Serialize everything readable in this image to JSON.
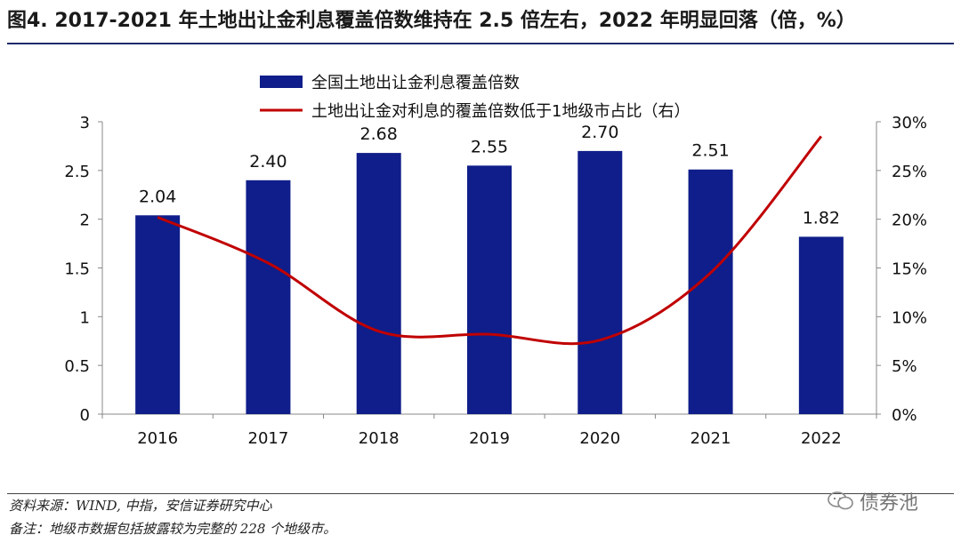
{
  "header": {
    "title": "图4. 2017-2021 年土地出让金利息覆盖倍数维持在 2.5 倍左右，2022 年明显回落（倍，%）"
  },
  "footer": {
    "source": "资料来源：WIND, 中指，安信证券研究中心",
    "note": "备注：地级市数据包括披露较为完整的 228 个地级市。",
    "watermark_text": "债券池",
    "watermark_icon": "wechat-icon"
  },
  "colors": {
    "bar": "#0f1e8a",
    "line": "#c00000",
    "rule": "#1e2a6b"
  },
  "chart_data": {
    "type": "bar",
    "title": "",
    "categories": [
      "2016",
      "2017",
      "2018",
      "2019",
      "2020",
      "2021",
      "2022"
    ],
    "series": [
      {
        "name": "全国土地出让金利息覆盖倍数",
        "type": "bar",
        "axis": "left",
        "values": [
          2.04,
          2.4,
          2.68,
          2.55,
          2.7,
          2.51,
          1.82
        ],
        "data_labels": [
          "2.04",
          "2.40",
          "2.68",
          "2.55",
          "2.70",
          "2.51",
          "1.82"
        ]
      },
      {
        "name": "土地出让金对利息的覆盖倍数低于1地级市占比（右）",
        "type": "line",
        "axis": "right",
        "values": [
          20.2,
          15.5,
          8.5,
          8.2,
          7.6,
          14.5,
          28.5
        ]
      }
    ],
    "y_left": {
      "ylim": [
        0,
        3
      ],
      "ticks": [
        "0",
        "0.5",
        "1",
        "1.5",
        "2",
        "2.5",
        "3"
      ]
    },
    "y_right": {
      "ylim": [
        0,
        30
      ],
      "ticks": [
        "0%",
        "5%",
        "10%",
        "15%",
        "20%",
        "25%",
        "30%"
      ]
    },
    "grid": false,
    "legend_position": "top"
  }
}
